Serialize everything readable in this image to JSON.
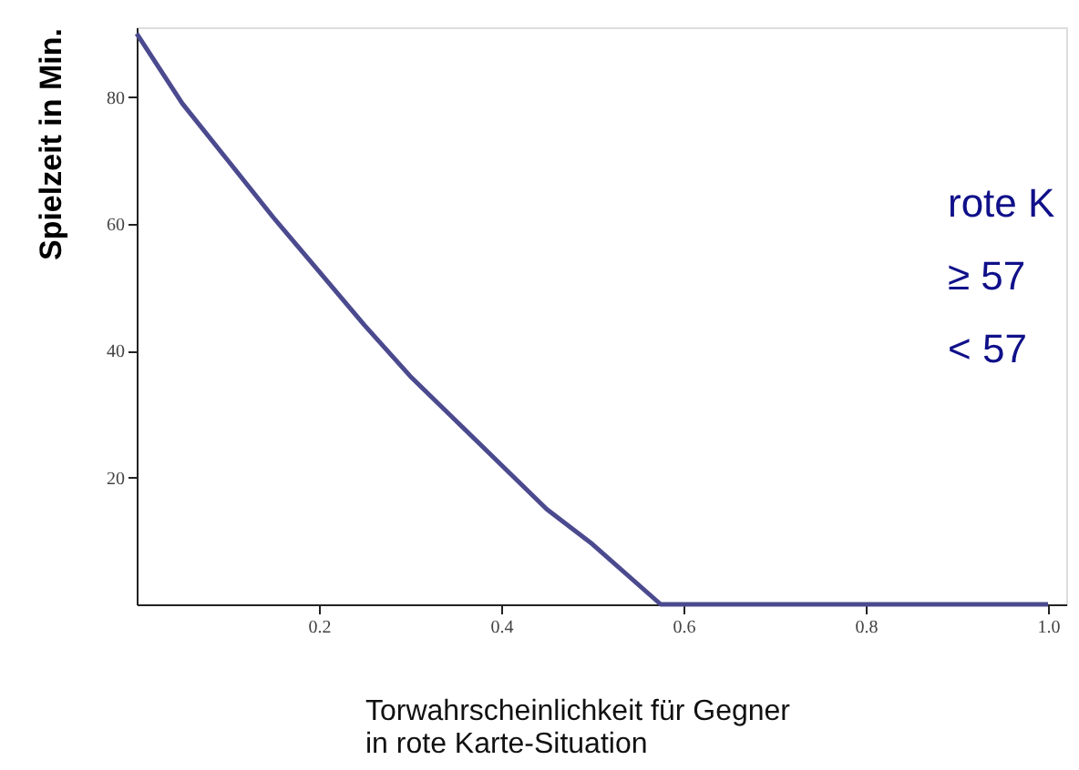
{
  "chart_data": {
    "type": "line",
    "xlabel": "Torwahrscheinlichkeit für Gegner\nin rote Karte-Situation",
    "ylabel": "Spielzeit in Min.",
    "x": [
      0,
      0.05,
      0.1,
      0.15,
      0.2,
      0.25,
      0.3,
      0.35,
      0.4,
      0.45,
      0.5,
      0.575,
      0.7,
      0.85,
      1.0
    ],
    "series": [
      {
        "color": "#4b4a8f",
        "values": [
          90,
          79,
          70,
          61,
          52.5,
          44,
          36,
          29,
          22,
          15,
          9.5,
          0,
          0,
          0,
          0
        ]
      }
    ],
    "xlim": [
      0,
      1.02
    ],
    "ylim": [
      0,
      91
    ],
    "xticks": [
      0.2,
      0.4,
      0.6,
      0.8,
      {
        "value": 1.0,
        "label": "1.0"
      }
    ],
    "yticks": [
      20,
      40,
      60,
      80
    ],
    "grid": false,
    "marker": "none",
    "line_style": "solid",
    "annotations": [
      "rote K",
      "≥ 57",
      "< 57"
    ]
  }
}
